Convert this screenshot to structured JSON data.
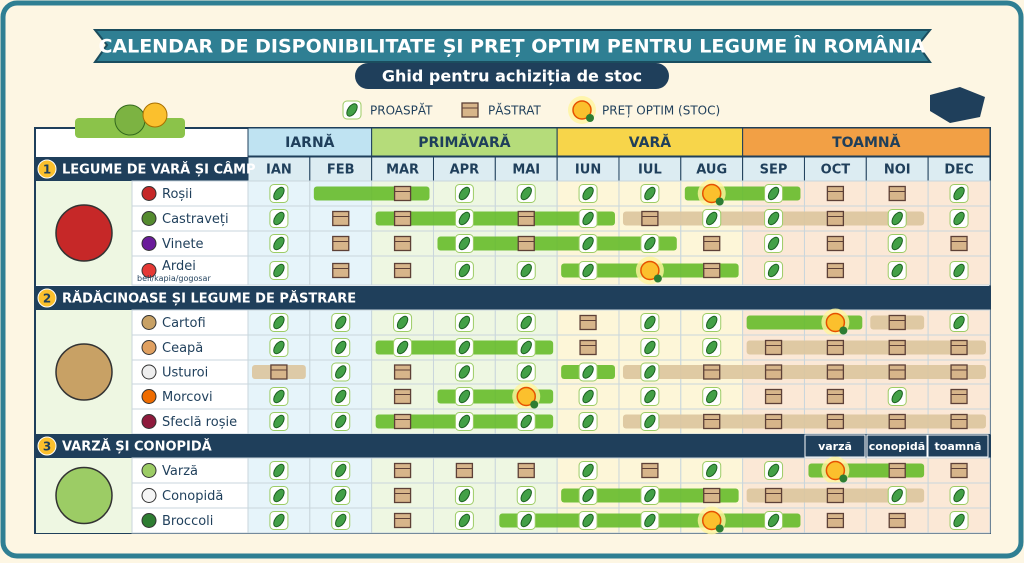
{
  "header": {
    "title": "CALENDAR DE DISPONIBILITATE ȘI PREȚ OPTIM PENTRU LEGUME ÎN ROMÂNIA",
    "subtitle": "Ghid pentru achiziția de stoc"
  },
  "legend": {
    "fresh": "PROASPĂT",
    "stored": "PĂSTRAT",
    "optimal": "PREȚ OPTIM (STOC)"
  },
  "seasons": [
    "IARNĂ",
    "PRIMĂVARĂ",
    "VARĂ",
    "TOAMNĂ"
  ],
  "months": [
    "IAN",
    "FEB",
    "MAR",
    "APR",
    "MAI",
    "IUN",
    "IUL",
    "AUG",
    "SEP",
    "OCT",
    "NOI",
    "DEC"
  ],
  "sections": [
    {
      "number": 1,
      "title": "LEGUME DE VARĂ ȘI CÂMP",
      "rows": [
        {
          "name": "Roșii"
        },
        {
          "name": "Castraveți"
        },
        {
          "name": "Vinete"
        },
        {
          "name": "Ardei",
          "note": "bell/kapia/gogosar"
        }
      ]
    },
    {
      "number": 2,
      "title": "RĂDĂCINOASE ȘI LEGUME DE PĂSTRARE",
      "rows": [
        {
          "name": "Cartofi"
        },
        {
          "name": "Ceapă"
        },
        {
          "name": "Usturoi"
        },
        {
          "name": "Morcovi"
        },
        {
          "name": "Sfeclă roșie"
        }
      ]
    },
    {
      "number": 3,
      "title": "VARZĂ ȘI CONOPIDĂ",
      "notes": [
        "varză",
        "conopidă",
        "toamnă"
      ],
      "rows": [
        {
          "name": "Varză"
        },
        {
          "name": "Conopidă"
        },
        {
          "name": "Broccoli"
        }
      ]
    }
  ]
}
